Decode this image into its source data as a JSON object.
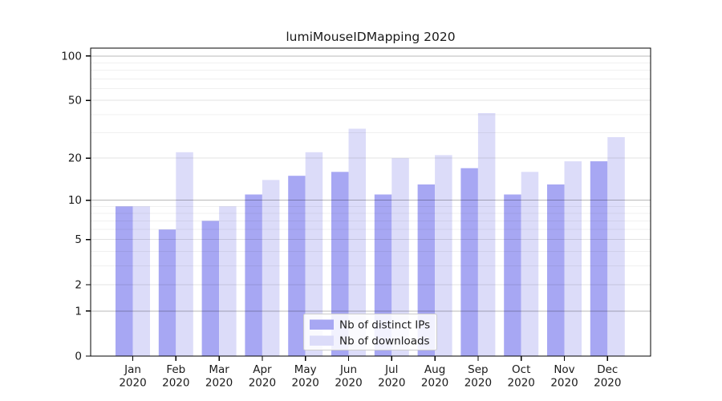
{
  "chart_data": {
    "type": "bar",
    "title": "lumiMouseIDMapping 2020",
    "categories": [
      "Jan 2020",
      "Feb 2020",
      "Mar 2020",
      "Apr 2020",
      "May 2020",
      "Jun 2020",
      "Jul 2020",
      "Aug 2020",
      "Sep 2020",
      "Oct 2020",
      "Nov 2020",
      "Dec 2020"
    ],
    "series": [
      {
        "name": "Nb of distinct IPs",
        "color": "#a7a7f3",
        "values": [
          9,
          6,
          7,
          11,
          15,
          16,
          11,
          13,
          17,
          11,
          13,
          19
        ]
      },
      {
        "name": "Nb of downloads",
        "color": "#dcdcf9",
        "values": [
          9,
          22,
          9,
          14,
          22,
          32,
          20,
          21,
          41,
          16,
          19,
          28
        ]
      }
    ],
    "y_axis": {
      "scale": "log1p",
      "ticks": [
        0,
        1,
        2,
        5,
        10,
        20,
        50,
        100
      ],
      "max": 113
    },
    "grid": {
      "on": true,
      "decade_line_color": "rgba(0,0,0,0.28)",
      "major_line_color": "rgba(0,0,0,0.11)",
      "minor_line_color": "rgba(0,0,0,0.06)"
    },
    "legend": {
      "position": "inside-bottom-center",
      "background": "rgba(255,255,255,0.85)",
      "border_color": "#cccccc"
    },
    "axis_color": "#000000"
  }
}
